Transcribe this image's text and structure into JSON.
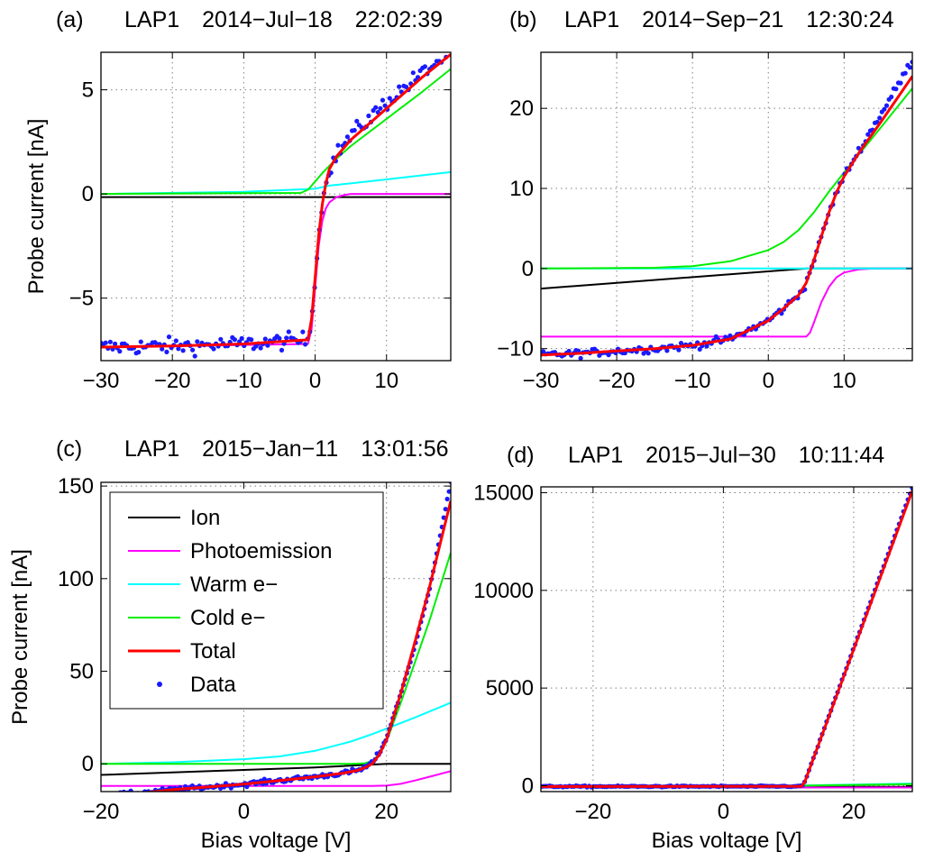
{
  "figure": {
    "colors": {
      "ion": "#000000",
      "photo": "#ff00ff",
      "warm": "#00ffff",
      "cold": "#00ee00",
      "total": "#ff0000",
      "data": "#1a1aff"
    },
    "legend": {
      "panel": 2,
      "entries": [
        {
          "key": "ion",
          "label": "Ion",
          "style": "line"
        },
        {
          "key": "photo",
          "label": "Photoemission",
          "style": "line"
        },
        {
          "key": "warm",
          "label": "Warm e−",
          "style": "line"
        },
        {
          "key": "cold",
          "label": "Cold e−",
          "style": "line"
        },
        {
          "key": "total",
          "label": "Total",
          "style": "line"
        },
        {
          "key": "data",
          "label": "Data",
          "style": "dot"
        }
      ]
    }
  },
  "chart_data": [
    {
      "type": "line",
      "panel_label": "(a)",
      "title": "LAP1 2014−Jul−18 22:02:39",
      "xlabel": "",
      "ylabel": "Probe current [nA]",
      "xlim": [
        -30,
        19
      ],
      "ylim": [
        -8,
        6.8
      ],
      "xticks": [
        -30,
        -20,
        -10,
        0,
        10
      ],
      "yticks": [
        -5,
        0,
        5
      ],
      "grid": true,
      "series": [
        {
          "key": "ion",
          "x": [
            -30,
            19
          ],
          "y": [
            -0.15,
            -0.15
          ]
        },
        {
          "key": "photo",
          "x": [
            -30,
            -1,
            -0.5,
            0,
            0.5,
            1,
            1.5,
            2,
            3,
            4,
            5,
            19
          ],
          "y": [
            -7.35,
            -7.2,
            -6.5,
            -4.5,
            -2.5,
            -1.3,
            -0.7,
            -0.4,
            -0.15,
            -0.06,
            0,
            0
          ]
        },
        {
          "key": "warm",
          "x": [
            -30,
            -10,
            0,
            2,
            10,
            19
          ],
          "y": [
            0,
            0.1,
            0.25,
            0.4,
            0.7,
            1.05
          ]
        },
        {
          "key": "cold",
          "x": [
            -30,
            -2,
            -1,
            0,
            1,
            2,
            3,
            5,
            10,
            15,
            19
          ],
          "y": [
            0,
            0.05,
            0.2,
            0.6,
            1.0,
            1.35,
            1.7,
            2.3,
            3.6,
            4.9,
            6.0
          ]
        },
        {
          "key": "total",
          "x": [
            -30,
            -20,
            -10,
            -1,
            -0.5,
            0,
            0.5,
            1,
            1.5,
            2,
            3,
            5,
            10,
            15,
            19
          ],
          "y": [
            -7.35,
            -7.3,
            -7.2,
            -7.0,
            -6.0,
            -4.0,
            -2.0,
            -0.5,
            0.5,
            1.2,
            1.8,
            2.6,
            4.1,
            5.6,
            6.7
          ]
        },
        {
          "key": "data",
          "style": "dots",
          "noise": 0.28,
          "n": 150,
          "x": [
            -30,
            -20,
            -10,
            -1,
            -0.5,
            0,
            0.5,
            1,
            1.5,
            2,
            3,
            5,
            10,
            15,
            19
          ],
          "y": [
            -7.35,
            -7.3,
            -7.2,
            -7.0,
            -6.0,
            -4.0,
            -2.0,
            -0.5,
            0.5,
            1.2,
            1.9,
            2.8,
            4.4,
            5.8,
            6.8
          ]
        }
      ]
    },
    {
      "type": "line",
      "panel_label": "(b)",
      "title": "LAP1 2014−Sep−21 12:30:24",
      "xlabel": "",
      "ylabel": "",
      "xlim": [
        -30,
        19
      ],
      "ylim": [
        -11.5,
        27
      ],
      "xticks": [
        -30,
        -20,
        -10,
        0,
        10
      ],
      "yticks": [
        -10,
        0,
        10,
        20
      ],
      "grid": true,
      "series": [
        {
          "key": "ion",
          "x": [
            -30,
            5,
            19
          ],
          "y": [
            -2.5,
            0,
            0
          ]
        },
        {
          "key": "photo",
          "x": [
            -30,
            5,
            5.5,
            6,
            7,
            8,
            9,
            10,
            12,
            14,
            19
          ],
          "y": [
            -8.5,
            -8.5,
            -8.0,
            -6.8,
            -4.2,
            -2.3,
            -1.1,
            -0.5,
            -0.1,
            0,
            0
          ]
        },
        {
          "key": "warm",
          "x": [
            -30,
            19
          ],
          "y": [
            0,
            0
          ]
        },
        {
          "key": "cold",
          "x": [
            -30,
            -15,
            -10,
            -5,
            0,
            2,
            4,
            6,
            8,
            10,
            12,
            15,
            19
          ],
          "y": [
            0,
            0.1,
            0.3,
            0.9,
            2.3,
            3.3,
            4.8,
            7.0,
            9.6,
            12.0,
            14.3,
            17.8,
            22.5
          ]
        },
        {
          "key": "total",
          "x": [
            -30,
            -25,
            -20,
            -15,
            -10,
            -5,
            0,
            2,
            4,
            5,
            6,
            7,
            8,
            9,
            10,
            12,
            15,
            19
          ],
          "y": [
            -10.8,
            -10.6,
            -10.3,
            -10.0,
            -9.6,
            -8.8,
            -6.5,
            -5.0,
            -3.3,
            -1.8,
            1.0,
            4.0,
            7.0,
            9.5,
            11.5,
            14.5,
            18.5,
            24.0
          ]
        },
        {
          "key": "data",
          "style": "dots",
          "noise": 0.35,
          "n": 160,
          "x": [
            -30,
            -25,
            -20,
            -15,
            -10,
            -5,
            0,
            2,
            4,
            5,
            6,
            7,
            8,
            9,
            10,
            12,
            15,
            19
          ],
          "y": [
            -10.8,
            -10.6,
            -10.3,
            -10.0,
            -9.6,
            -8.8,
            -6.5,
            -5.0,
            -3.3,
            -1.8,
            1.0,
            4.0,
            7.0,
            9.5,
            11.5,
            14.8,
            19.5,
            26.0
          ]
        }
      ]
    },
    {
      "type": "line",
      "panel_label": "(c)",
      "title": "LAP1 2015−Jan−11 13:01:56",
      "xlabel": "Bias voltage [V]",
      "ylabel": "Probe current [nA]",
      "xlim": [
        -20,
        29
      ],
      "ylim": [
        -15,
        152
      ],
      "xticks": [
        -20,
        0,
        20
      ],
      "yticks": [
        0,
        50,
        100,
        150
      ],
      "grid": true,
      "series": [
        {
          "key": "ion",
          "x": [
            -20,
            0,
            10,
            20,
            29
          ],
          "y": [
            -6,
            -3.3,
            -2,
            0,
            0
          ]
        },
        {
          "key": "photo",
          "x": [
            -20,
            18,
            20,
            22,
            24,
            26,
            29
          ],
          "y": [
            -12,
            -12,
            -11.8,
            -10.8,
            -9,
            -7,
            -4
          ]
        },
        {
          "key": "warm",
          "x": [
            -20,
            -10,
            0,
            5,
            10,
            15,
            18,
            20,
            24,
            29
          ],
          "y": [
            0,
            0.8,
            2.5,
            4,
            7,
            12,
            16,
            19,
            25,
            33
          ]
        },
        {
          "key": "cold",
          "x": [
            -20,
            10,
            15,
            17,
            18,
            19,
            20,
            22,
            24,
            26,
            29
          ],
          "y": [
            0,
            0,
            0,
            0.3,
            1.5,
            5,
            12,
            33,
            55,
            77,
            114
          ]
        },
        {
          "key": "total",
          "x": [
            -20,
            -15,
            -10,
            -5,
            0,
            5,
            10,
            14,
            16,
            17,
            18,
            19,
            20,
            22,
            24,
            26,
            29
          ],
          "y": [
            -17,
            -16,
            -14,
            -12.5,
            -11,
            -9,
            -7,
            -5,
            -3.5,
            -2,
            0,
            5,
            13,
            38,
            66,
            95,
            142
          ]
        },
        {
          "key": "data",
          "style": "dots",
          "noise": 0.9,
          "n": 200,
          "x": [
            -20,
            -15,
            -10,
            -5,
            0,
            5,
            10,
            14,
            16,
            17,
            18,
            19,
            20,
            22,
            24,
            26,
            29
          ],
          "y": [
            -17,
            -16,
            -14,
            -12.5,
            -11,
            -9,
            -7,
            -5,
            -3.5,
            -2,
            0.5,
            6,
            14,
            38,
            64,
            94,
            152
          ]
        }
      ]
    },
    {
      "type": "line",
      "panel_label": "(d)",
      "title": "LAP1 2015−Jul−30 10:11:44",
      "xlabel": "Bias voltage [V]",
      "ylabel": "",
      "xlim": [
        -28,
        29
      ],
      "ylim": [
        -300,
        15300
      ],
      "xticks": [
        -20,
        0,
        20
      ],
      "yticks": [
        0,
        5000,
        10000,
        15000
      ],
      "grid": true,
      "series": [
        {
          "key": "ion",
          "x": [
            -28,
            29
          ],
          "y": [
            -60,
            -60
          ]
        },
        {
          "key": "photo",
          "x": [
            -28,
            29
          ],
          "y": [
            -90,
            -90
          ]
        },
        {
          "key": "warm",
          "x": [
            -28,
            0,
            12,
            20,
            29
          ],
          "y": [
            0,
            5,
            15,
            60,
            110
          ]
        },
        {
          "key": "cold",
          "x": [
            -28,
            12,
            29
          ],
          "y": [
            0,
            0,
            80
          ]
        },
        {
          "key": "total",
          "x": [
            -28,
            12,
            12.5,
            29
          ],
          "y": [
            -40,
            -30,
            200,
            15100
          ]
        },
        {
          "key": "data",
          "style": "dots",
          "noise": 25,
          "n": 170,
          "x": [
            -28,
            12,
            12.5,
            29
          ],
          "y": [
            -40,
            -30,
            200,
            15250
          ]
        }
      ]
    }
  ]
}
